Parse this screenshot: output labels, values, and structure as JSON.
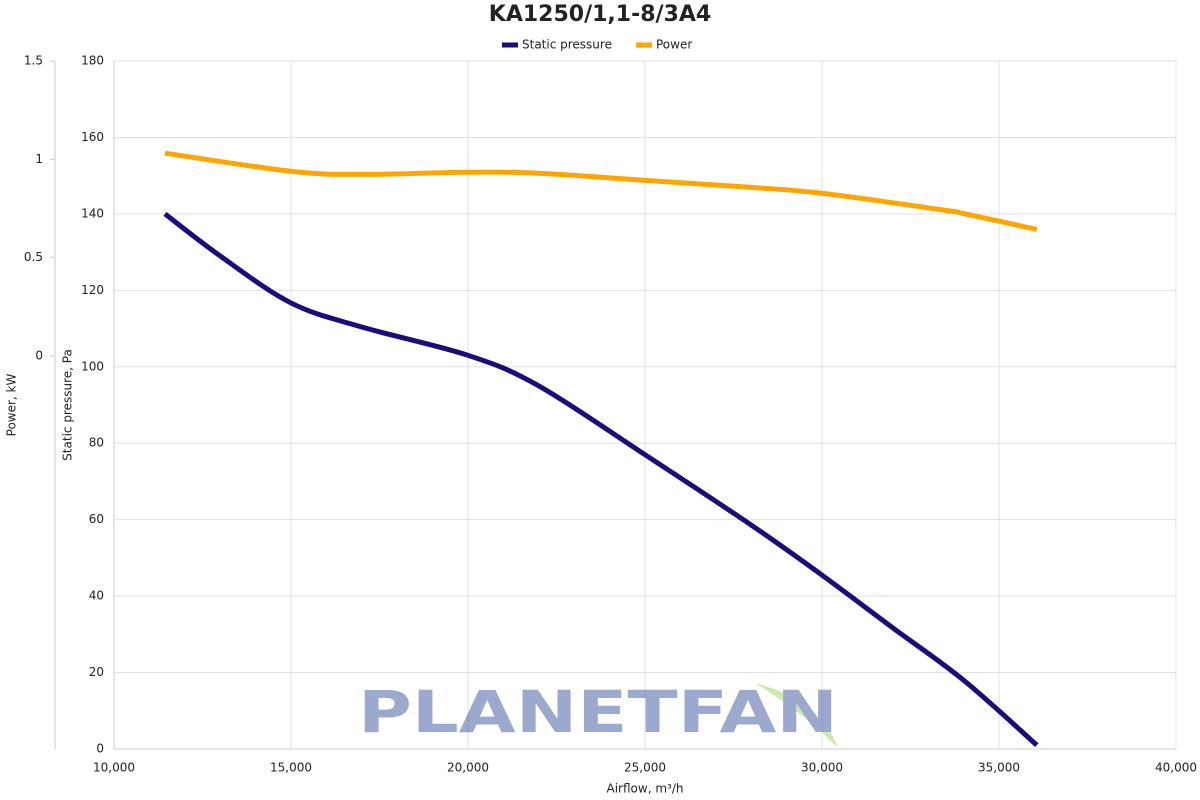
{
  "chart_data": {
    "type": "line",
    "title": "KA1250/1,1-8/3A4",
    "x_label": "Airflow, m³/h",
    "y_label": "Static pressure, Pa",
    "y2_label": "Power, kW",
    "watermark": "PLANETFAN",
    "xlim": [
      10000,
      40000
    ],
    "xticks": [
      {
        "value": 10000,
        "label": "10,000"
      },
      {
        "value": 15000,
        "label": "15,000"
      },
      {
        "value": 20000,
        "label": "20,000"
      },
      {
        "value": 25000,
        "label": "25,000"
      },
      {
        "value": 30000,
        "label": "30,000"
      },
      {
        "value": 35000,
        "label": "35,000"
      },
      {
        "value": 40000,
        "label": "40,000"
      }
    ],
    "ylim": [
      0,
      180
    ],
    "yticks": [
      0,
      20,
      40,
      60,
      80,
      100,
      120,
      140,
      160,
      180
    ],
    "y2lim": [
      -2,
      1.5
    ],
    "y2ticks": [
      0,
      0.5,
      1,
      1.5
    ],
    "grid": true,
    "legend": "top",
    "series": [
      {
        "name": "Static pressure",
        "color": "#1f0a7a",
        "x": [
          11440,
          13000,
          15000,
          17000,
          20000,
          22000,
          25000,
          28000,
          30000,
          32000,
          34000,
          36070
        ],
        "values": [
          140,
          129,
          116.7,
          110.4,
          103,
          95,
          77,
          58.6,
          45.5,
          31.7,
          18,
          1
        ]
      },
      {
        "name": "Power",
        "color": "#ffa500",
        "axis": "y2",
        "x": [
          11440,
          15000,
          17000,
          20000,
          22000,
          25000,
          28000,
          30000,
          33500,
          34000,
          36070
        ],
        "values": [
          1.031,
          0.939,
          0.923,
          0.934,
          0.929,
          0.893,
          0.857,
          0.827,
          0.74,
          0.724,
          0.643
        ]
      }
    ]
  }
}
